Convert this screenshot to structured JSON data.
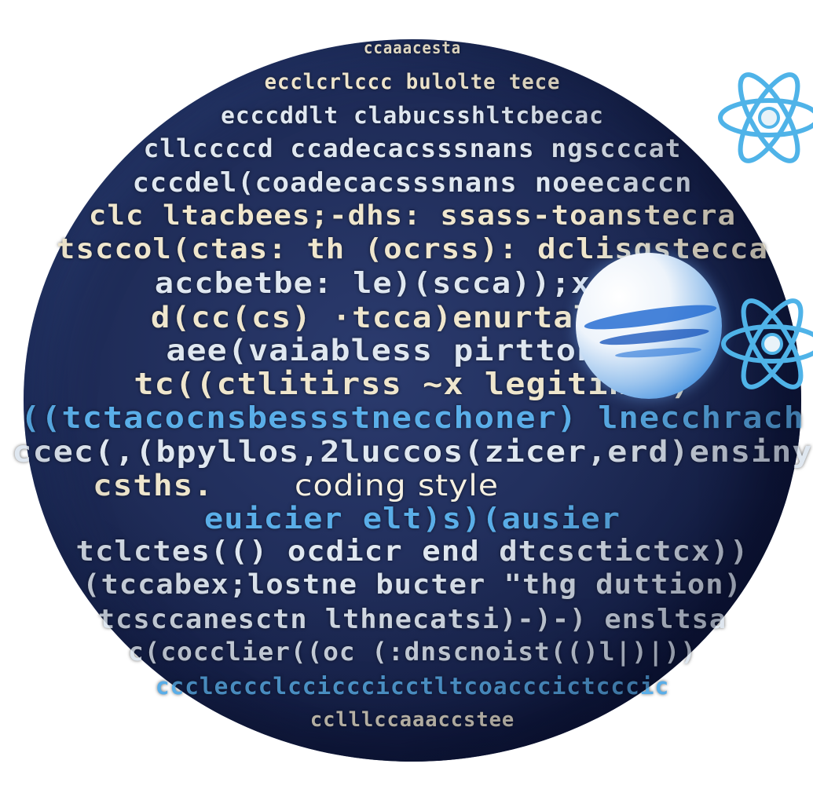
{
  "illustration": {
    "subject": "code-sphere",
    "colors": {
      "sphere": "#1f2c58",
      "text_cream": "#efe6cd",
      "text_blue": "#5aaee8",
      "atom": "#4fb3e8",
      "planet": "#3f8fe0"
    },
    "icons": [
      "atom-icon",
      "atom-icon",
      "planet-icon"
    ],
    "code_lines": [
      {
        "text": "ccaaacesta",
        "tone": "cream"
      },
      {
        "text": "ecclcrlccc bulolte tece",
        "tone": "cream"
      },
      {
        "text": "ecccddlt clabucsshltcbecac",
        "tone": "mix"
      },
      {
        "text": "cllccccd ccadecacsssnans ngscccat",
        "tone": "mix"
      },
      {
        "text": "cccdel(coadecacsssnans noeecaccn",
        "tone": "mix"
      },
      {
        "text": "clc ltacbees;-dhs: ssass-toanstecra",
        "tone": "cream"
      },
      {
        "text": "tsccol(ctas: th (ocrss): dclisgstecca",
        "tone": "cream"
      },
      {
        "text": "accbetbe: le)(scca));x. eS",
        "tone": "mix"
      },
      {
        "text": "d(cc(cs) ·tcca)enurtalss:-",
        "tone": "cream"
      },
      {
        "text": "aee(vaiabless pirtton -)",
        "tone": "mix"
      },
      {
        "text": "tc((ctlitirss ~x legitinss)",
        "tone": "cream"
      },
      {
        "text": "((tctacocnsbessstnecchoner) lnecchrach",
        "tone": "blue"
      },
      {
        "text": "ccec(,(bpyllos,2luccos(zicer,erd)ensiny",
        "tone": "mix"
      },
      {
        "text": "csths.",
        "tone": "cream"
      },
      {
        "text": "coding style",
        "tone": "highlight"
      },
      {
        "text": "euicier elt)s)(ausier",
        "tone": "blue"
      },
      {
        "text": "tclctes(() ocdicr end dtcsctictcx))",
        "tone": "mix"
      },
      {
        "text": "(tccabex;lostne bucter \"thg duttion)",
        "tone": "mix"
      },
      {
        "text": "tcsccanesctn lthnecatsi)-)-) ensltsa",
        "tone": "mix"
      },
      {
        "text": "c(cocclier((oc (:dnscnoist(()l|)|))",
        "tone": "mix"
      },
      {
        "text": "cccleccclccicccicctltcoacccictcccic",
        "tone": "blue"
      },
      {
        "text": "cclllccaaaccstee",
        "tone": "cream"
      }
    ]
  }
}
